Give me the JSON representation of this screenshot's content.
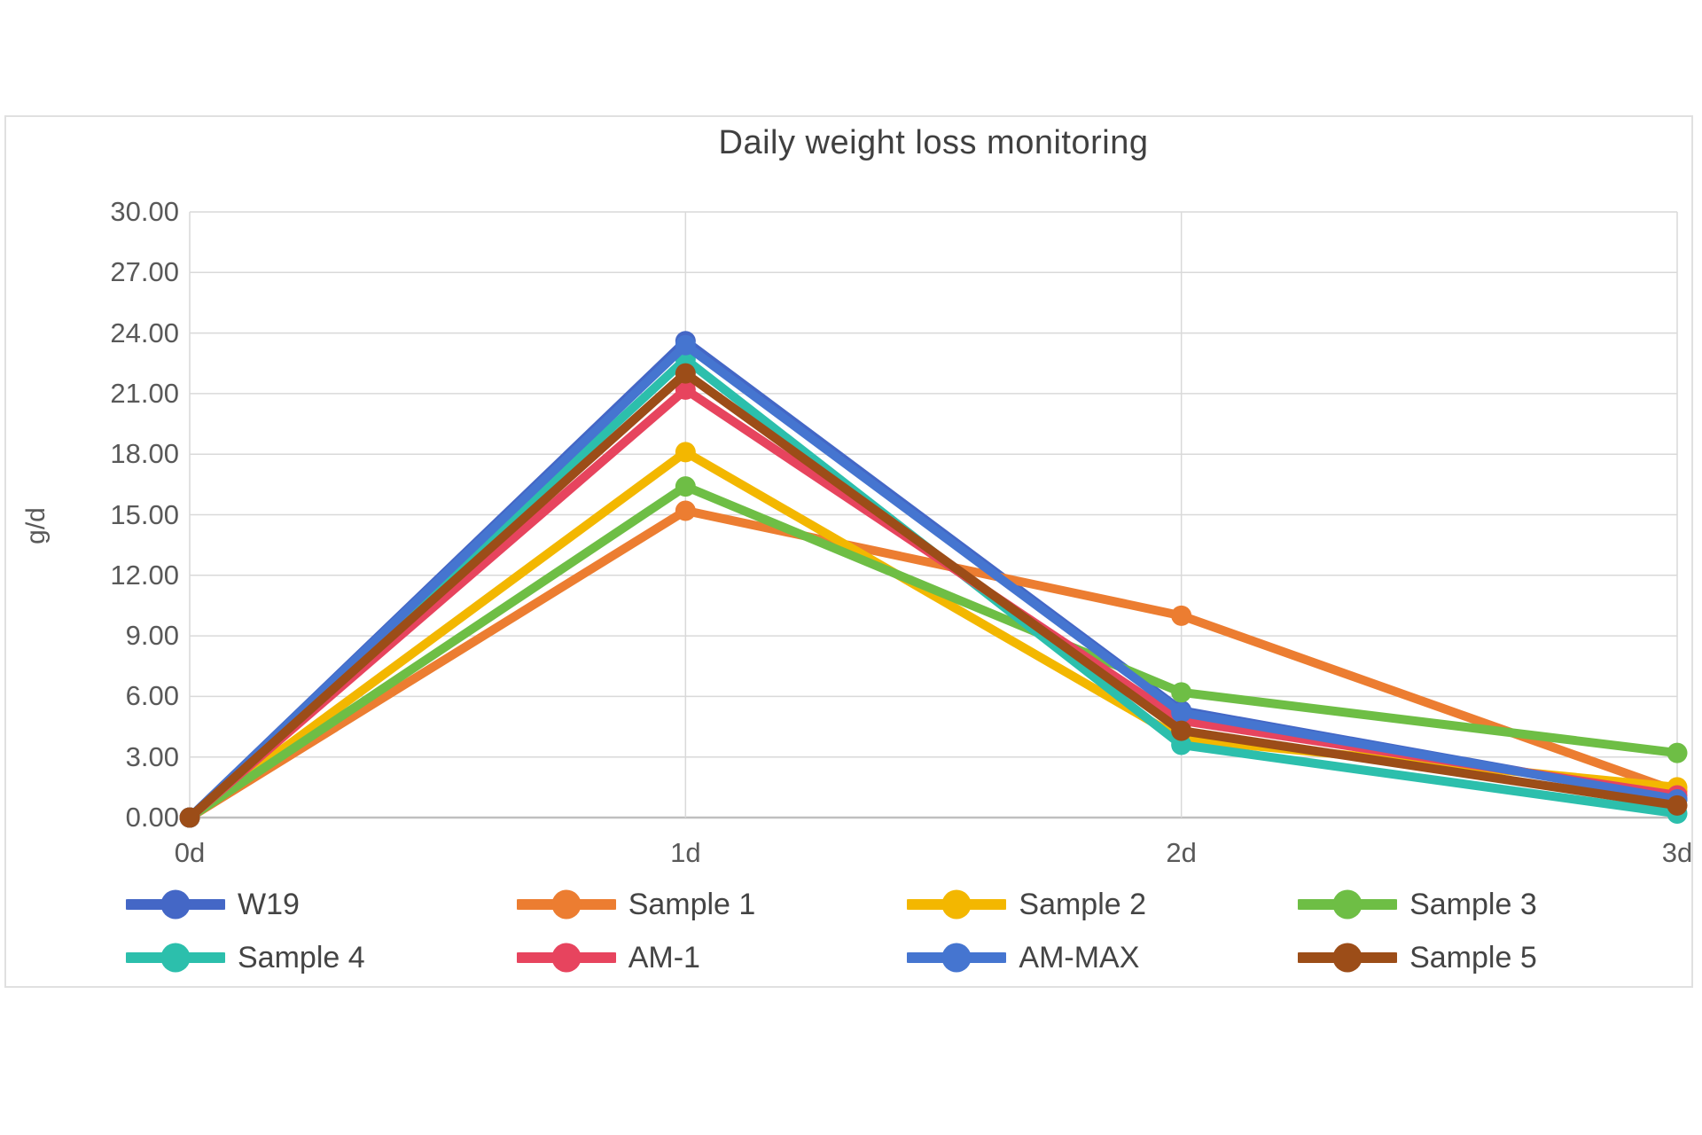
{
  "chart_data": {
    "type": "line",
    "title": "Daily weight loss monitoring",
    "xlabel": "",
    "ylabel": "g/d",
    "categories": [
      "0d",
      "1d",
      "2d",
      "3d"
    ],
    "ylim": [
      0,
      30
    ],
    "ytick_step": 3,
    "ytick_decimals": 2,
    "grid": true,
    "legend_position": "bottom",
    "series": [
      {
        "name": "W19",
        "color": "#4467c6",
        "values": [
          0.0,
          23.6,
          5.3,
          0.9
        ]
      },
      {
        "name": "Sample 1",
        "color": "#ec7d31",
        "values": [
          0.0,
          15.2,
          10.0,
          1.3
        ]
      },
      {
        "name": "Sample 2",
        "color": "#f3b700",
        "values": [
          0.0,
          18.1,
          3.9,
          1.5
        ]
      },
      {
        "name": "Sample 3",
        "color": "#6ebe45",
        "values": [
          0.0,
          16.4,
          6.2,
          3.2
        ]
      },
      {
        "name": "Sample 4",
        "color": "#2cbfac",
        "values": [
          0.0,
          22.7,
          3.6,
          0.2
        ]
      },
      {
        "name": "AM-1",
        "color": "#e7445e",
        "values": [
          0.0,
          21.2,
          4.8,
          1.1
        ]
      },
      {
        "name": "AM-MAX",
        "color": "#4575d0",
        "values": [
          0.0,
          23.4,
          5.2,
          0.9
        ]
      },
      {
        "name": "Sample 5",
        "color": "#9c4d18",
        "values": [
          0.0,
          22.0,
          4.3,
          0.6
        ]
      }
    ],
    "axis_colors": {
      "gridline": "#d9d9d9",
      "axis_line": "#bfbfbf",
      "tick_text": "#595959",
      "title_text": "#404040"
    }
  }
}
